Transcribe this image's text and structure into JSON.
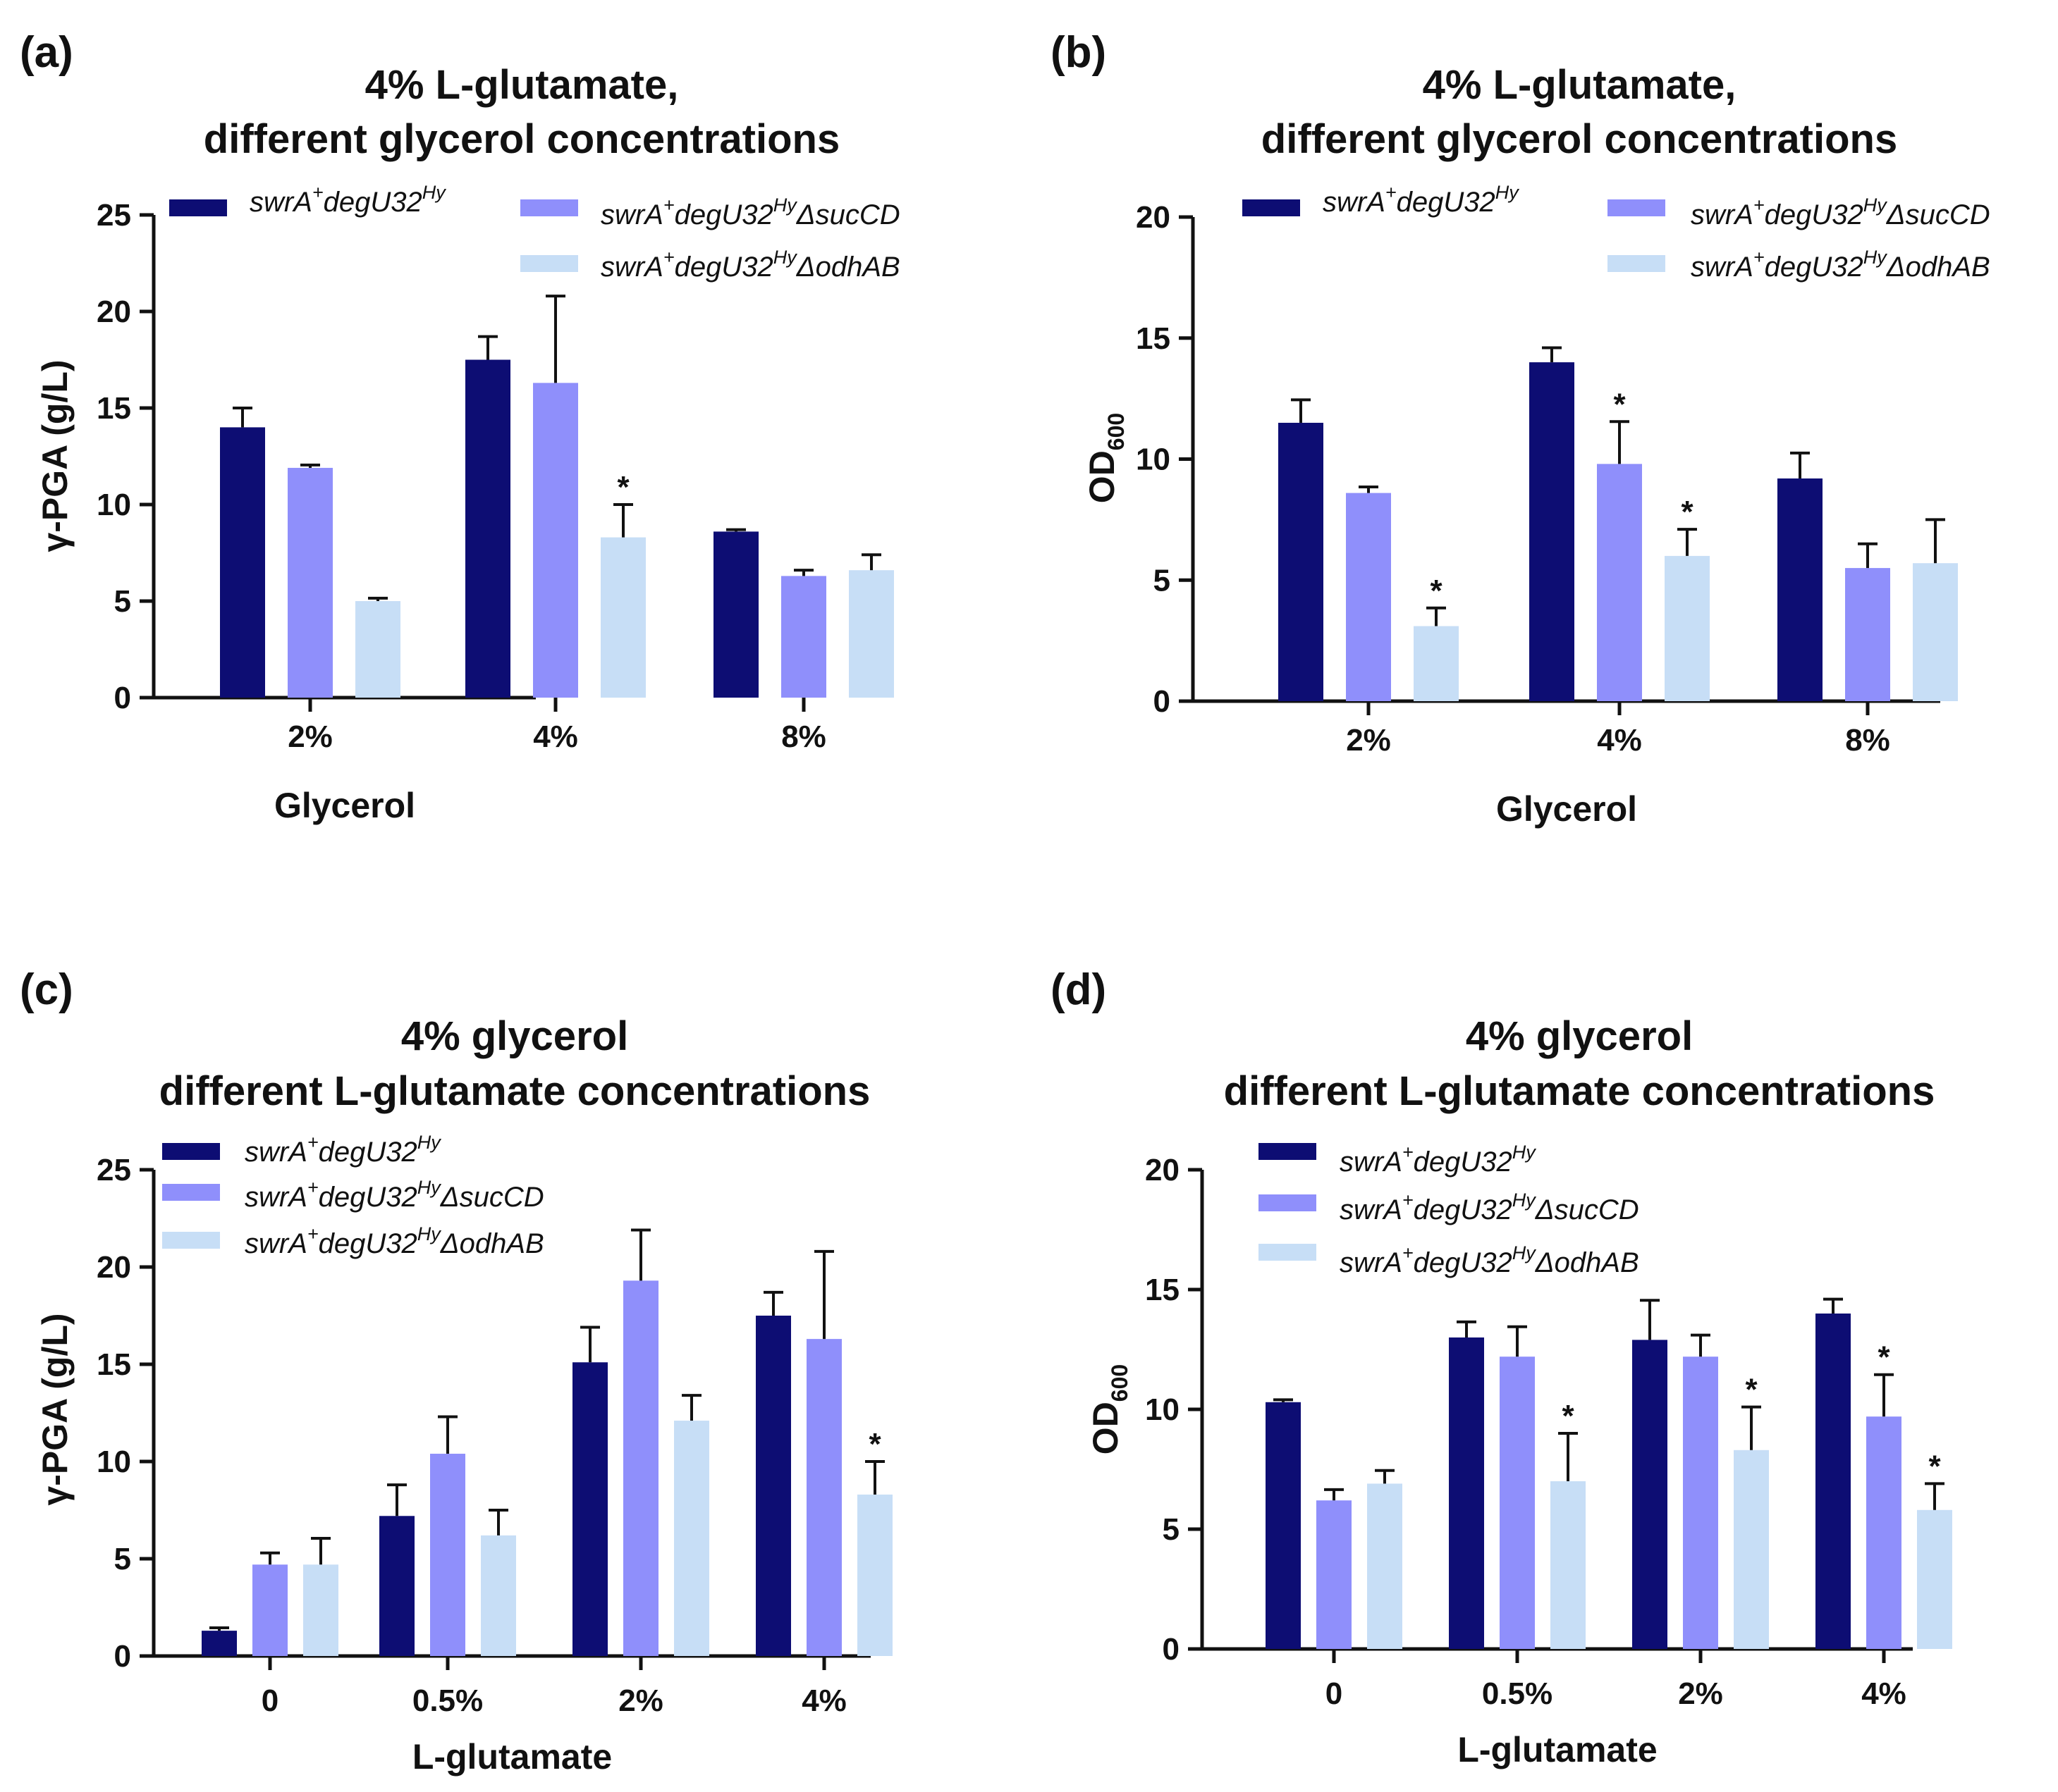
{
  "colors": {
    "series1": "#0d0d73",
    "series2": "#8f8ffb",
    "series3": "#c7def6",
    "axis": "#111111"
  },
  "legend_parts": [
    {
      "base": "swrA",
      "sup1": "+",
      "mid": "degU32",
      "sup2": "Hy",
      "suffix": ""
    },
    {
      "base": "swrA",
      "sup1": "+",
      "mid": "degU32",
      "sup2": "Hy",
      "suffix": "ΔsucCD"
    },
    {
      "base": "swrA",
      "sup1": "+",
      "mid": "degU32",
      "sup2": "Hy",
      "suffix": "ΔodhAB"
    }
  ],
  "chart_data": [
    {
      "panel": "(a)",
      "type": "bar",
      "title": [
        "4% L-glutamate,",
        "different glycerol concentrations"
      ],
      "xlabel": "Glycerol",
      "ylabel": "γ-PGA (g/L)",
      "ylabel_sub": "",
      "ylim": [
        0,
        25
      ],
      "yticks": [
        0,
        5,
        10,
        15,
        20,
        25
      ],
      "categories": [
        "2%",
        "4%",
        "8%"
      ],
      "series": [
        {
          "name": "swrA+degU32Hy",
          "values": [
            14.0,
            17.5,
            8.6
          ],
          "errors": [
            1.0,
            1.2,
            0.1
          ],
          "sig": [
            false,
            false,
            false
          ]
        },
        {
          "name": "swrA+degU32Hy ΔsucCD",
          "values": [
            11.9,
            16.3,
            6.3
          ],
          "errors": [
            0.15,
            4.5,
            0.3
          ],
          "sig": [
            false,
            false,
            false
          ]
        },
        {
          "name": "swrA+degU32Hy ΔodhAB",
          "values": [
            5.0,
            8.3,
            6.6
          ],
          "errors": [
            0.15,
            1.7,
            0.8
          ],
          "sig": [
            false,
            true,
            false
          ]
        }
      ],
      "legend_layout": "two-column"
    },
    {
      "panel": "(b)",
      "type": "bar",
      "title": [
        "4% L-glutamate,",
        "different glycerol concentrations"
      ],
      "xlabel": "Glycerol",
      "ylabel": "OD",
      "ylabel_sub": "600",
      "ylim": [
        0,
        20
      ],
      "yticks": [
        0,
        5,
        10,
        15,
        20
      ],
      "categories": [
        "2%",
        "4%",
        "8%"
      ],
      "series": [
        {
          "name": "swrA+degU32Hy",
          "values": [
            11.5,
            14.0,
            9.2
          ],
          "errors": [
            0.95,
            0.6,
            1.05
          ],
          "sig": [
            false,
            false,
            false
          ]
        },
        {
          "name": "swrA+degU32Hy ΔsucCD",
          "values": [
            8.6,
            9.8,
            5.5
          ],
          "errors": [
            0.25,
            1.75,
            1.0
          ],
          "sig": [
            false,
            true,
            false
          ]
        },
        {
          "name": "swrA+degU32Hy ΔodhAB",
          "values": [
            3.1,
            6.0,
            5.7
          ],
          "errors": [
            0.75,
            1.1,
            1.8
          ],
          "sig": [
            true,
            true,
            false
          ]
        }
      ],
      "legend_layout": "two-column"
    },
    {
      "panel": "(c)",
      "type": "bar",
      "title": [
        "4% glycerol",
        "different L-glutamate concentrations"
      ],
      "xlabel": "L-glutamate",
      "ylabel": "γ-PGA (g/L)",
      "ylabel_sub": "",
      "ylim": [
        0,
        25
      ],
      "yticks": [
        0,
        5,
        10,
        15,
        20,
        25
      ],
      "categories": [
        "0",
        "0.5%",
        "2%",
        "4%"
      ],
      "series": [
        {
          "name": "swrA+degU32Hy",
          "values": [
            1.3,
            7.2,
            15.1,
            17.5
          ],
          "errors": [
            0.15,
            1.6,
            1.8,
            1.2
          ],
          "sig": [
            false,
            false,
            false,
            false
          ]
        },
        {
          "name": "swrA+degU32Hy ΔsucCD",
          "values": [
            4.7,
            10.4,
            19.3,
            16.3
          ],
          "errors": [
            0.6,
            1.9,
            2.6,
            4.5
          ],
          "sig": [
            false,
            false,
            false,
            false
          ]
        },
        {
          "name": "swrA+degU32Hy ΔodhAB",
          "values": [
            4.7,
            6.2,
            12.1,
            8.3
          ],
          "errors": [
            1.35,
            1.3,
            1.3,
            1.7
          ],
          "sig": [
            false,
            false,
            false,
            true
          ]
        }
      ],
      "legend_layout": "one-column"
    },
    {
      "panel": "(d)",
      "type": "bar",
      "title": [
        "4% glycerol",
        "different L-glutamate concentrations"
      ],
      "xlabel": "L-glutamate",
      "ylabel": "OD",
      "ylabel_sub": "600",
      "ylim": [
        0,
        20
      ],
      "yticks": [
        0,
        5,
        10,
        15,
        20
      ],
      "categories": [
        "0",
        "0.5%",
        "2%",
        "4%"
      ],
      "series": [
        {
          "name": "swrA+degU32Hy",
          "values": [
            10.3,
            13.0,
            12.9,
            14.0
          ],
          "errors": [
            0.1,
            0.65,
            1.65,
            0.6
          ],
          "sig": [
            false,
            false,
            false,
            false
          ]
        },
        {
          "name": "swrA+degU32Hy ΔsucCD",
          "values": [
            6.2,
            12.2,
            12.2,
            9.7
          ],
          "errors": [
            0.45,
            1.25,
            0.9,
            1.75
          ],
          "sig": [
            false,
            false,
            false,
            true
          ]
        },
        {
          "name": "swrA+degU32Hy ΔodhAB",
          "values": [
            6.9,
            7.0,
            8.3,
            5.8
          ],
          "errors": [
            0.55,
            2.0,
            1.8,
            1.1
          ],
          "sig": [
            false,
            true,
            true,
            true
          ]
        }
      ],
      "legend_layout": "one-column"
    }
  ]
}
